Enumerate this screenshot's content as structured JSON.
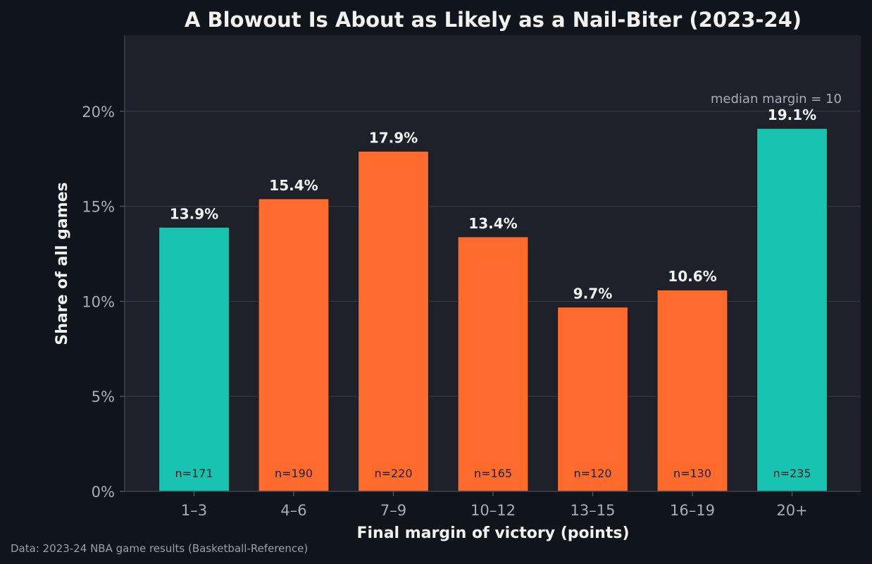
{
  "chart_data": {
    "type": "bar",
    "title": "A Blowout Is About as Likely as a Nail-Biter (2023-24)",
    "xlabel": "Final margin of victory (points)",
    "ylabel": "Share of all games",
    "categories": [
      "1–3",
      "4–6",
      "7–9",
      "10–12",
      "13–15",
      "16–19",
      "20+"
    ],
    "values": [
      13.9,
      15.4,
      17.9,
      13.4,
      9.7,
      10.6,
      19.1
    ],
    "value_labels": [
      "13.9%",
      "15.4%",
      "17.9%",
      "13.4%",
      "9.7%",
      "10.6%",
      "19.1%"
    ],
    "counts": [
      "n=171",
      "n=190",
      "n=220",
      "n=165",
      "n=120",
      "n=130",
      "n=235"
    ],
    "bar_colors": [
      "#19c3b1",
      "#ff6b2d",
      "#ff6b2d",
      "#ff6b2d",
      "#ff6b2d",
      "#ff6b2d",
      "#19c3b1"
    ],
    "ylim": [
      0,
      24
    ],
    "yticks": [
      0,
      5,
      10,
      15,
      20
    ],
    "ytick_labels": [
      "0%",
      "5%",
      "10%",
      "15%",
      "20%"
    ],
    "grid": true,
    "annotation": "median margin = 10",
    "source": "Data: 2023-24 NBA game results (Basketball-Reference)"
  },
  "colors": {
    "background": "#10141b",
    "plot_background": "#1e2129",
    "grid": "#343a46",
    "accent_teal": "#19c3b1",
    "accent_orange": "#ff6b2d"
  }
}
